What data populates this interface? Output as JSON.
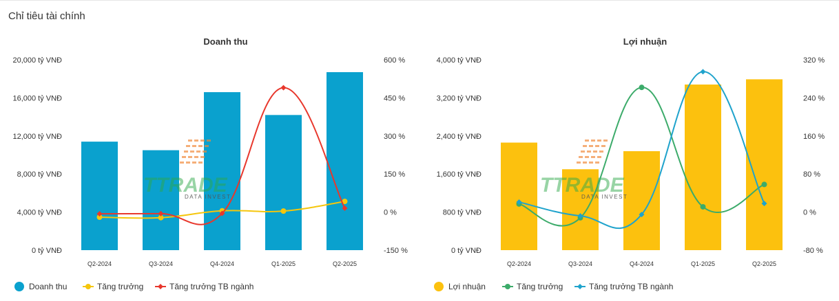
{
  "page": {
    "title": "Chỉ tiêu tài chính"
  },
  "chart_data": [
    {
      "type": "bar",
      "title": "Doanh thu",
      "categories": [
        "Q2-2024",
        "Q3-2024",
        "Q4-2024",
        "Q1-2025",
        "Q2-2025"
      ],
      "bar_series": {
        "name": "Doanh thu",
        "values": [
          11400,
          10500,
          16600,
          14200,
          18700
        ],
        "color": "#0aa1ce"
      },
      "line_series": [
        {
          "name": "Tăng trưởng",
          "values": [
            -20,
            -22,
            5,
            4,
            42
          ],
          "color": "#f5c60c"
        },
        {
          "name": "Tăng trưởng TB ngành",
          "values": [
            -7,
            -6,
            -5,
            490,
            15
          ],
          "color": "#e8372c"
        }
      ],
      "y_left": {
        "min": 0,
        "max": 20000,
        "ticks": [
          "0 tỷ VNĐ",
          "4,000 tỷ VNĐ",
          "8,000 tỷ VNĐ",
          "12,000 tỷ VNĐ",
          "16,000 tỷ VNĐ",
          "20,000 tỷ VNĐ"
        ]
      },
      "y_right": {
        "min": -150,
        "max": 600,
        "ticks": [
          "-150 %",
          "0 %",
          "150 %",
          "300 %",
          "450 %",
          "600 %"
        ]
      },
      "legend": [
        "Doanh thu",
        "Tăng trưởng",
        "Tăng trưởng TB ngành"
      ],
      "legend_position": "bottom-left"
    },
    {
      "type": "bar",
      "title": "Lợi nhuận",
      "categories": [
        "Q2-2024",
        "Q3-2024",
        "Q4-2024",
        "Q1-2025",
        "Q2-2025"
      ],
      "bar_series": {
        "name": "Lợi nhuận",
        "values": [
          2260,
          1700,
          2080,
          3480,
          3590
        ],
        "color": "#fcc10e"
      },
      "line_series": [
        {
          "name": "Tăng trưởng",
          "values": [
            17,
            -12,
            262,
            11,
            58
          ],
          "color": "#3cab6a"
        },
        {
          "name": "Tăng trưởng TB ngành",
          "values": [
            21,
            -8,
            -5,
            295,
            18
          ],
          "color": "#1fa3cc"
        }
      ],
      "y_left": {
        "min": 0,
        "max": 4000,
        "ticks": [
          "0 tỷ VNĐ",
          "800 tỷ VNĐ",
          "1,600 tỷ VNĐ",
          "2,400 tỷ VNĐ",
          "3,200 tỷ VNĐ",
          "4,000 tỷ VNĐ"
        ]
      },
      "y_right": {
        "min": -80,
        "max": 320,
        "ticks": [
          "-80 %",
          "0 %",
          "80 %",
          "160 %",
          "240 %",
          "320 %"
        ]
      },
      "legend": [
        "Lợi nhuận",
        "Tăng trưởng",
        "Tăng trưởng TB ngành"
      ],
      "legend_position": "bottom-left"
    }
  ],
  "watermark": {
    "text": "TTRADE",
    "subtext": "DATA   INVEST"
  }
}
